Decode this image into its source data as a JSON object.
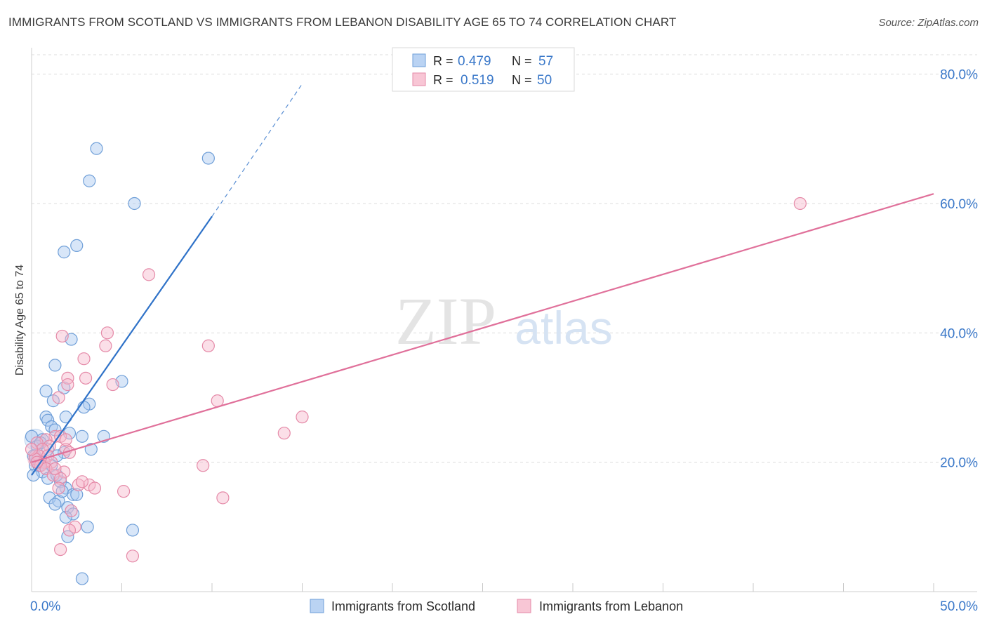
{
  "header": {
    "title": "IMMIGRANTS FROM SCOTLAND VS IMMIGRANTS FROM LEBANON DISABILITY AGE 65 TO 74 CORRELATION CHART",
    "source": "Source: ZipAtlas.com"
  },
  "watermark": {
    "zip": "ZIP",
    "atlas": "atlas"
  },
  "colors": {
    "scotland_fill": "#a9c8f0",
    "scotland_stroke": "#6f9fd8",
    "scotland_line": "#2f72c8",
    "lebanon_fill": "#f6b8cb",
    "lebanon_stroke": "#e58aa8",
    "lebanon_line": "#e0709a",
    "accent_text": "#3a78c9"
  },
  "legend_top": {
    "r_label": "R =",
    "n_label": "N =",
    "scotland": {
      "r": "0.479",
      "n": "57"
    },
    "lebanon": {
      "r": "0.519",
      "n": "50"
    }
  },
  "chart_data": {
    "type": "scatter",
    "title": "IMMIGRANTS FROM SCOTLAND VS IMMIGRANTS FROM LEBANON DISABILITY AGE 65 TO 74 CORRELATION CHART",
    "xlabel": "",
    "ylabel": "Disability Age 65 to 74",
    "xlim": [
      0,
      50
    ],
    "ylim": [
      0,
      83
    ],
    "x_tick_labels": [
      "0.0%",
      "50.0%"
    ],
    "y_ticks": [
      20,
      40,
      60,
      80
    ],
    "y_tick_labels": [
      "20.0%",
      "40.0%",
      "60.0%",
      "80.0%"
    ],
    "grid": true,
    "legend_position": "bottom",
    "series": [
      {
        "name": "Immigrants from Scotland",
        "r": 0.479,
        "n": 57,
        "trend": {
          "x0": 0.0,
          "y0": 18.0,
          "x1": 10.0,
          "y1": 58.0,
          "dash_x1": 15.0,
          "dash_y1": 78.5
        },
        "points": [
          [
            3.6,
            68.5
          ],
          [
            3.2,
            63.5
          ],
          [
            5.7,
            60.0
          ],
          [
            9.8,
            67.0
          ],
          [
            1.8,
            52.5
          ],
          [
            2.5,
            53.5
          ],
          [
            2.2,
            39.0
          ],
          [
            1.3,
            35.0
          ],
          [
            5.0,
            32.5
          ],
          [
            0.8,
            31.0
          ],
          [
            1.8,
            31.5
          ],
          [
            1.2,
            29.5
          ],
          [
            3.2,
            29.0
          ],
          [
            2.9,
            28.5
          ],
          [
            0.8,
            27.0
          ],
          [
            0.9,
            26.5
          ],
          [
            1.9,
            27.0
          ],
          [
            1.1,
            25.5
          ],
          [
            1.3,
            25.0
          ],
          [
            2.1,
            24.5
          ],
          [
            2.8,
            24.0
          ],
          [
            4.0,
            24.0
          ],
          [
            0.6,
            23.5
          ],
          [
            0.3,
            22.5
          ],
          [
            3.3,
            22.0
          ],
          [
            1.8,
            21.5
          ],
          [
            1.4,
            21.0
          ],
          [
            0.3,
            20.5
          ],
          [
            0.5,
            20.0
          ],
          [
            0.2,
            19.5
          ],
          [
            0.4,
            19.5
          ],
          [
            1.1,
            19.5
          ],
          [
            0.6,
            18.5
          ],
          [
            0.1,
            18.0
          ],
          [
            0.9,
            17.5
          ],
          [
            1.6,
            17.0
          ],
          [
            1.9,
            16.0
          ],
          [
            2.3,
            15.0
          ],
          [
            2.5,
            15.0
          ],
          [
            1.0,
            14.5
          ],
          [
            1.5,
            14.0
          ],
          [
            1.3,
            13.5
          ],
          [
            2.0,
            13.0
          ],
          [
            2.3,
            12.0
          ],
          [
            1.9,
            11.5
          ],
          [
            3.1,
            10.0
          ],
          [
            5.6,
            9.5
          ],
          [
            2.0,
            8.5
          ],
          [
            2.8,
            2.0
          ],
          [
            0.0,
            24.0
          ],
          [
            0.2,
            21.0
          ],
          [
            0.7,
            20.0
          ],
          [
            0.1,
            21.0
          ],
          [
            0.9,
            22.0
          ],
          [
            1.4,
            18.0
          ],
          [
            0.5,
            23.0
          ],
          [
            1.7,
            15.5
          ]
        ]
      },
      {
        "name": "Immigrants from Lebanon",
        "r": 0.519,
        "n": 50,
        "trend": {
          "x0": 0.0,
          "y0": 20.0,
          "x1": 50.0,
          "y1": 61.5
        },
        "points": [
          [
            42.6,
            60.0
          ],
          [
            6.5,
            49.0
          ],
          [
            4.2,
            40.0
          ],
          [
            1.7,
            39.5
          ],
          [
            9.8,
            38.0
          ],
          [
            4.1,
            38.0
          ],
          [
            2.9,
            36.0
          ],
          [
            2.0,
            33.0
          ],
          [
            3.0,
            33.0
          ],
          [
            2.0,
            32.0
          ],
          [
            4.5,
            32.0
          ],
          [
            1.5,
            30.0
          ],
          [
            10.3,
            29.5
          ],
          [
            15.0,
            27.0
          ],
          [
            14.0,
            24.5
          ],
          [
            1.3,
            24.0
          ],
          [
            1.6,
            24.0
          ],
          [
            0.8,
            23.5
          ],
          [
            0.3,
            23.0
          ],
          [
            1.0,
            22.5
          ],
          [
            0.6,
            22.0
          ],
          [
            1.9,
            22.0
          ],
          [
            2.1,
            21.5
          ],
          [
            0.4,
            21.0
          ],
          [
            0.9,
            21.0
          ],
          [
            0.2,
            20.5
          ],
          [
            0.7,
            20.0
          ],
          [
            1.1,
            20.0
          ],
          [
            0.5,
            19.5
          ],
          [
            9.5,
            19.5
          ],
          [
            0.8,
            19.0
          ],
          [
            1.8,
            18.5
          ],
          [
            1.2,
            18.0
          ],
          [
            1.6,
            17.5
          ],
          [
            3.2,
            16.5
          ],
          [
            2.6,
            16.5
          ],
          [
            3.5,
            16.0
          ],
          [
            1.5,
            16.0
          ],
          [
            5.1,
            15.5
          ],
          [
            10.6,
            14.5
          ],
          [
            2.2,
            12.5
          ],
          [
            2.4,
            10.0
          ],
          [
            2.1,
            9.5
          ],
          [
            1.6,
            6.5
          ],
          [
            5.6,
            5.5
          ],
          [
            0.0,
            22.0
          ],
          [
            0.3,
            20.0
          ],
          [
            1.3,
            19.0
          ],
          [
            2.8,
            17.0
          ],
          [
            1.9,
            23.5
          ]
        ]
      }
    ]
  },
  "bottom_legend": {
    "scotland_label": "Immigrants from Scotland",
    "lebanon_label": "Immigrants from Lebanon"
  }
}
